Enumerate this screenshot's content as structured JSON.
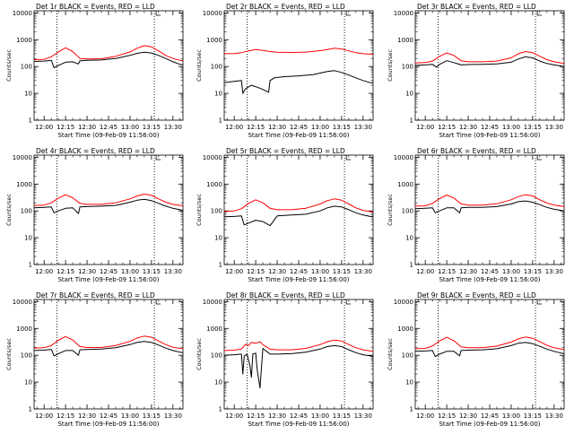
{
  "figure": {
    "colors": {
      "events": "#000000",
      "lld": "#ff0000",
      "axis": "#000000",
      "marker": "#000000"
    },
    "xaxis": {
      "label": "Start Time (09-Feb-09 11:56:00)",
      "tick_labels": [
        "12:00",
        "12:15",
        "12:30",
        "12:45",
        "13:00",
        "13:15",
        "13:30"
      ],
      "tick_minutes": [
        240,
        255,
        270,
        285,
        300,
        315,
        330
      ]
    },
    "yaxis": {
      "label": "Counts/sec",
      "tick_labels": [
        "1",
        "10",
        "100",
        "1000",
        "10000"
      ],
      "scale": "log"
    }
  },
  "chart_data": [
    {
      "type": "line",
      "title": "Det 1r BLACK = Events, RED = LLD",
      "xlabel": "Start Time (09-Feb-09 11:56:00)",
      "ylabel": "Counts/sec",
      "x_unit": "minutes after 08:00 UT",
      "xlim": [
        233,
        337
      ],
      "ylim": [
        1,
        12000
      ],
      "yscale": "log",
      "vlines_minutes": [
        249,
        317
      ],
      "series": [
        {
          "name": "BLACK = Events",
          "x": [
            233,
            240,
            245,
            247,
            250,
            255,
            260,
            264,
            265,
            270,
            280,
            290,
            300,
            305,
            310,
            315,
            320,
            325,
            330,
            335,
            337
          ],
          "y": [
            155,
            160,
            170,
            90,
            110,
            145,
            150,
            125,
            165,
            170,
            175,
            200,
            260,
            310,
            340,
            320,
            260,
            200,
            150,
            120,
            115
          ]
        },
        {
          "name": "RED = LLD",
          "x": [
            233,
            240,
            245,
            250,
            255,
            260,
            265,
            270,
            280,
            290,
            300,
            305,
            310,
            315,
            320,
            325,
            330,
            335,
            337
          ],
          "y": [
            180,
            185,
            230,
            350,
            500,
            360,
            200,
            190,
            195,
            240,
            350,
            480,
            600,
            540,
            380,
            260,
            200,
            170,
            165
          ]
        }
      ]
    },
    {
      "type": "line",
      "title": "Det 2r BLACK = Events, RED = LLD",
      "xlabel": "Start Time (09-Feb-09 11:56:00)",
      "ylabel": "Counts/sec",
      "x_unit": "minutes after 08:00 UT",
      "xlim": [
        233,
        337
      ],
      "ylim": [
        1,
        12000
      ],
      "yscale": "log",
      "vlines_minutes": [
        249,
        317
      ],
      "series": [
        {
          "name": "BLACK = Events",
          "x": [
            233,
            240,
            245,
            246,
            248,
            252,
            256,
            260,
            264,
            265,
            268,
            275,
            285,
            295,
            305,
            310,
            315,
            320,
            325,
            330,
            335,
            337
          ],
          "y": [
            25,
            28,
            30,
            10,
            15,
            20,
            17,
            14,
            11,
            30,
            38,
            42,
            45,
            50,
            65,
            70,
            60,
            48,
            38,
            30,
            25,
            25
          ]
        },
        {
          "name": "RED = LLD",
          "x": [
            233,
            240,
            245,
            250,
            255,
            260,
            265,
            270,
            280,
            290,
            300,
            305,
            310,
            315,
            320,
            325,
            330,
            335,
            337
          ],
          "y": [
            300,
            305,
            330,
            380,
            430,
            400,
            360,
            340,
            335,
            345,
            390,
            430,
            480,
            450,
            380,
            330,
            300,
            290,
            285
          ]
        }
      ]
    },
    {
      "type": "line",
      "title": "Det 3r BLACK = Events, RED = LLD",
      "xlabel": "Start Time (09-Feb-09 11:56:00)",
      "ylabel": "Counts/sec",
      "x_unit": "minutes after 08:00 UT",
      "xlim": [
        233,
        337
      ],
      "ylim": [
        1,
        12000
      ],
      "yscale": "log",
      "vlines_minutes": [
        249,
        317
      ],
      "series": [
        {
          "name": "BLACK = Events",
          "x": [
            233,
            240,
            245,
            248,
            250,
            255,
            260,
            265,
            270,
            280,
            290,
            300,
            305,
            310,
            315,
            320,
            325,
            330,
            335,
            337
          ],
          "y": [
            110,
            115,
            120,
            95,
            120,
            165,
            140,
            115,
            118,
            120,
            125,
            145,
            190,
            230,
            210,
            160,
            130,
            115,
            105,
            100
          ]
        },
        {
          "name": "RED = LLD",
          "x": [
            233,
            240,
            245,
            250,
            255,
            260,
            265,
            270,
            280,
            290,
            300,
            305,
            310,
            315,
            320,
            325,
            330,
            335,
            337
          ],
          "y": [
            135,
            140,
            160,
            240,
            320,
            260,
            165,
            150,
            150,
            160,
            210,
            300,
            360,
            330,
            240,
            180,
            150,
            135,
            130
          ]
        }
      ]
    },
    {
      "type": "line",
      "title": "Det 4r BLACK = Events, RED = LLD",
      "xlabel": "Start Time (09-Feb-09 11:56:00)",
      "ylabel": "Counts/sec",
      "x_unit": "minutes after 08:00 UT",
      "xlim": [
        233,
        337
      ],
      "ylim": [
        1,
        12000
      ],
      "yscale": "log",
      "vlines_minutes": [
        249,
        317
      ],
      "series": [
        {
          "name": "BLACK = Events",
          "x": [
            233,
            240,
            245,
            247,
            250,
            255,
            260,
            264,
            265,
            270,
            280,
            290,
            300,
            305,
            310,
            315,
            320,
            325,
            330,
            335,
            337
          ],
          "y": [
            130,
            135,
            140,
            85,
            100,
            125,
            130,
            80,
            140,
            145,
            150,
            160,
            210,
            250,
            270,
            240,
            190,
            150,
            125,
            110,
            105
          ]
        },
        {
          "name": "RED = LLD",
          "x": [
            233,
            240,
            245,
            250,
            255,
            260,
            265,
            270,
            280,
            290,
            300,
            305,
            310,
            315,
            320,
            325,
            330,
            335,
            337
          ],
          "y": [
            160,
            165,
            200,
            300,
            400,
            310,
            190,
            175,
            175,
            200,
            280,
            360,
            420,
            380,
            280,
            210,
            175,
            160,
            155
          ]
        }
      ]
    },
    {
      "type": "line",
      "title": "Det 5r BLACK = Events, RED = LLD",
      "xlabel": "Start Time (09-Feb-09 11:56:00)",
      "ylabel": "Counts/sec",
      "x_unit": "minutes after 08:00 UT",
      "xlim": [
        233,
        337
      ],
      "ylim": [
        1,
        12000
      ],
      "yscale": "log",
      "vlines_minutes": [
        249,
        317
      ],
      "series": [
        {
          "name": "BLACK = Events",
          "x": [
            233,
            240,
            245,
            247,
            250,
            255,
            260,
            265,
            270,
            280,
            290,
            300,
            305,
            310,
            315,
            320,
            325,
            330,
            335,
            337
          ],
          "y": [
            60,
            62,
            65,
            30,
            35,
            45,
            40,
            28,
            65,
            70,
            75,
            100,
            130,
            150,
            140,
            110,
            85,
            70,
            62,
            60
          ]
        },
        {
          "name": "RED = LLD",
          "x": [
            233,
            240,
            245,
            250,
            255,
            260,
            265,
            270,
            280,
            290,
            300,
            305,
            310,
            315,
            320,
            325,
            330,
            335,
            337
          ],
          "y": [
            95,
            100,
            120,
            190,
            260,
            200,
            125,
            110,
            110,
            125,
            180,
            240,
            280,
            250,
            180,
            130,
            105,
            95,
            90
          ]
        }
      ]
    },
    {
      "type": "line",
      "title": "Det 6r BLACK = Events, RED = LLD",
      "xlabel": "Start Time (09-Feb-09 11:56:00)",
      "ylabel": "Counts/sec",
      "x_unit": "minutes after 08:00 UT",
      "xlim": [
        233,
        337
      ],
      "ylim": [
        1,
        12000
      ],
      "yscale": "log",
      "vlines_minutes": [
        249,
        317
      ],
      "series": [
        {
          "name": "BLACK = Events",
          "x": [
            233,
            240,
            245,
            247,
            250,
            255,
            260,
            264,
            265,
            270,
            280,
            290,
            300,
            305,
            310,
            315,
            320,
            325,
            330,
            335,
            337
          ],
          "y": [
            120,
            125,
            130,
            85,
            100,
            130,
            130,
            85,
            130,
            135,
            135,
            145,
            180,
            220,
            235,
            210,
            170,
            135,
            115,
            105,
            100
          ]
        },
        {
          "name": "RED = LLD",
          "x": [
            233,
            240,
            245,
            250,
            255,
            260,
            265,
            270,
            280,
            290,
            300,
            305,
            310,
            315,
            320,
            325,
            330,
            335,
            337
          ],
          "y": [
            150,
            155,
            190,
            290,
            390,
            300,
            185,
            165,
            165,
            185,
            260,
            340,
            400,
            360,
            260,
            195,
            165,
            150,
            145
          ]
        }
      ]
    },
    {
      "type": "line",
      "title": "Det 7r BLACK = Events, RED = LLD",
      "xlabel": "Start Time (09-Feb-09 11:56:00)",
      "ylabel": "Counts/sec",
      "x_unit": "minutes after 08:00 UT",
      "xlim": [
        233,
        337
      ],
      "ylim": [
        1,
        12000
      ],
      "yscale": "log",
      "vlines_minutes": [
        249,
        317
      ],
      "series": [
        {
          "name": "BLACK = Events",
          "x": [
            233,
            240,
            245,
            247,
            250,
            255,
            260,
            264,
            265,
            270,
            280,
            290,
            300,
            305,
            310,
            315,
            320,
            325,
            330,
            335,
            337
          ],
          "y": [
            150,
            155,
            165,
            95,
            115,
            150,
            150,
            100,
            160,
            165,
            170,
            190,
            250,
            300,
            330,
            300,
            240,
            185,
            150,
            130,
            125
          ]
        },
        {
          "name": "RED = LLD",
          "x": [
            233,
            240,
            245,
            250,
            255,
            260,
            265,
            270,
            280,
            290,
            300,
            305,
            310,
            315,
            320,
            325,
            330,
            335,
            337
          ],
          "y": [
            185,
            190,
            230,
            360,
            500,
            370,
            210,
            195,
            195,
            230,
            330,
            440,
            520,
            470,
            340,
            250,
            200,
            180,
            175
          ]
        }
      ]
    },
    {
      "type": "line",
      "title": "Det 8r BLACK = Events, RED = LLD",
      "xlabel": "Start Time (09-Feb-09 11:56:00)",
      "ylabel": "Counts/sec",
      "x_unit": "minutes after 08:00 UT",
      "xlim": [
        233,
        337
      ],
      "ylim": [
        1,
        12000
      ],
      "yscale": "log",
      "vlines_minutes": [
        249,
        317
      ],
      "series": [
        {
          "name": "BLACK = Events",
          "x": [
            233,
            240,
            245,
            246,
            247,
            249,
            251,
            252,
            253,
            255,
            256,
            258,
            260,
            265,
            270,
            280,
            290,
            300,
            305,
            310,
            315,
            320,
            325,
            330,
            335,
            337
          ],
          "y": [
            100,
            105,
            110,
            20,
            95,
            110,
            40,
            15,
            110,
            120,
            30,
            6,
            180,
            110,
            110,
            115,
            130,
            170,
            210,
            230,
            210,
            160,
            125,
            105,
            95,
            90
          ]
        },
        {
          "name": "RED = LLD",
          "x": [
            233,
            240,
            245,
            248,
            250,
            252,
            255,
            258,
            260,
            265,
            270,
            280,
            290,
            300,
            305,
            310,
            315,
            320,
            325,
            330,
            335,
            337
          ],
          "y": [
            150,
            155,
            170,
            260,
            230,
            300,
            280,
            320,
            250,
            170,
            160,
            160,
            180,
            250,
            320,
            370,
            340,
            250,
            190,
            160,
            145,
            140
          ]
        }
      ]
    },
    {
      "type": "line",
      "title": "Det 9r BLACK = Events, RED = LLD",
      "xlabel": "Start Time (09-Feb-09 11:56:00)",
      "ylabel": "Counts/sec",
      "x_unit": "minutes after 08:00 UT",
      "xlim": [
        233,
        337
      ],
      "ylim": [
        1,
        12000
      ],
      "yscale": "log",
      "vlines_minutes": [
        249,
        317
      ],
      "series": [
        {
          "name": "BLACK = Events",
          "x": [
            233,
            240,
            245,
            247,
            250,
            255,
            260,
            264,
            265,
            270,
            280,
            290,
            300,
            305,
            310,
            315,
            320,
            325,
            330,
            335,
            337
          ],
          "y": [
            140,
            145,
            150,
            90,
            110,
            140,
            140,
            95,
            150,
            155,
            160,
            175,
            230,
            280,
            300,
            270,
            215,
            170,
            140,
            120,
            115
          ]
        },
        {
          "name": "RED = LLD",
          "x": [
            233,
            240,
            245,
            250,
            255,
            260,
            265,
            270,
            280,
            290,
            300,
            305,
            310,
            315,
            320,
            325,
            330,
            335,
            337
          ],
          "y": [
            175,
            180,
            220,
            340,
            470,
            350,
            205,
            190,
            190,
            220,
            310,
            410,
            480,
            430,
            320,
            235,
            190,
            170,
            165
          ]
        }
      ]
    }
  ]
}
